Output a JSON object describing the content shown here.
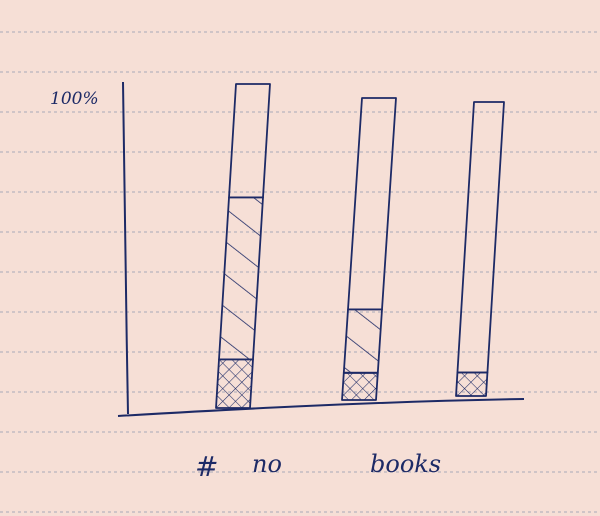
{
  "paper": {
    "background": "#f6dfd6",
    "rule_color": "#a8a8b8",
    "ink_color": "#1d2a66"
  },
  "chart_data": {
    "type": "bar",
    "style": "hand-drawn stacked bar sketch on lined paper",
    "y_axis_label": "100%",
    "categories": [
      "",
      "",
      ""
    ],
    "series": [
      {
        "pattern": "cross-hatch",
        "values": [
          15,
          9,
          8
        ]
      },
      {
        "pattern": "diagonal-hatch",
        "values": [
          50,
          21,
          0
        ]
      },
      {
        "pattern": "empty",
        "values": [
          35,
          70,
          92
        ]
      }
    ],
    "ylim": [
      0,
      100
    ],
    "x_annotations": [
      "#",
      "no",
      "books"
    ]
  }
}
